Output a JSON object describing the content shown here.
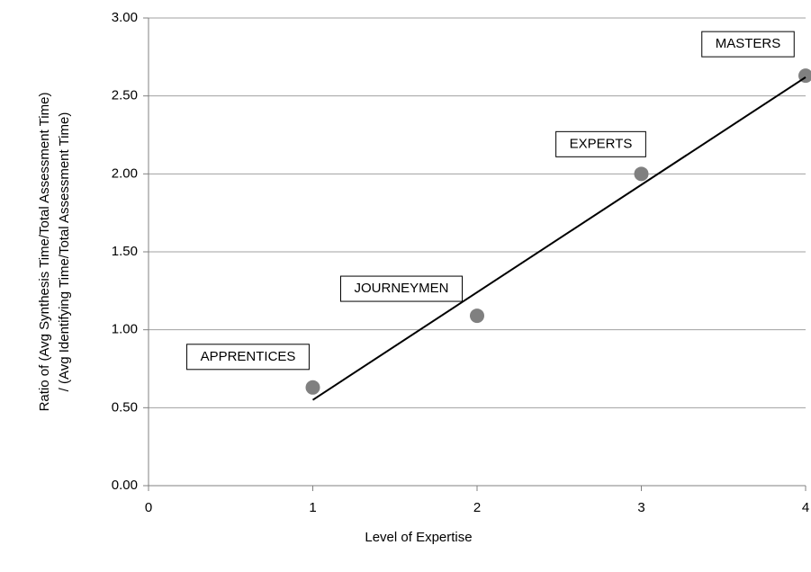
{
  "chart_data": {
    "type": "scatter",
    "x_label": "Level of Expertise",
    "y_label": [
      "Ratio of (Avg Synthesis Time/Total Assessment Time)",
      "/ (Avg Identifying Time/Total Assessment  Time)"
    ],
    "x": [
      1,
      2,
      3,
      4
    ],
    "values": [
      0.63,
      1.09,
      2.0,
      2.63
    ],
    "point_labels": [
      "APPRENTICES",
      "JOURNEYMEN",
      "EXPERTS",
      "MASTERS"
    ],
    "color": "#808080",
    "trendline": {
      "x": [
        1,
        4
      ],
      "values": [
        0.55,
        2.62
      ],
      "color": "#000000"
    },
    "xlim": [
      0,
      4
    ],
    "xticks": [
      0,
      1,
      2,
      3,
      4
    ],
    "ylim": [
      0,
      3
    ],
    "yticks": [
      {
        "value": 0,
        "label": "0.00"
      },
      {
        "value": 0.5,
        "label": "0.50"
      },
      {
        "value": 1,
        "label": "1.00"
      },
      {
        "value": 1.5,
        "label": "1.50"
      },
      {
        "value": 2,
        "label": "2.00"
      },
      {
        "value": 2.5,
        "label": "2.50"
      },
      {
        "value": 3,
        "label": "3.00"
      }
    ],
    "grid": true
  }
}
